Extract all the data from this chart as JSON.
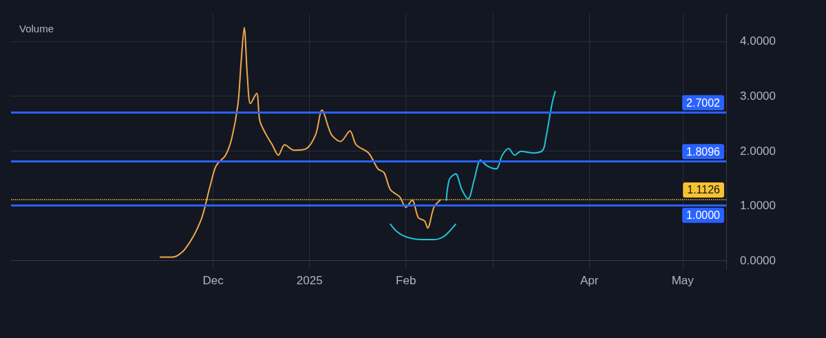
{
  "chart_data": {
    "type": "line",
    "annotations": [
      "Volume"
    ],
    "xlim": [
      "2024-09-27",
      "2025-05-15"
    ],
    "xticks": [
      {
        "value": "2024-12-01",
        "label": "Dec"
      },
      {
        "value": "2025-01-01",
        "label": "2025"
      },
      {
        "value": "2025-02-01",
        "label": "Feb"
      },
      {
        "value": "2025-03-01",
        "label": null
      },
      {
        "value": "2025-04-01",
        "label": "Apr"
      },
      {
        "value": "2025-05-01",
        "label": "May"
      }
    ],
    "ylim": [
      -0.16,
      4.5
    ],
    "yticks": [
      {
        "value": 0,
        "label": "0.0000"
      },
      {
        "value": 1,
        "label": "1.0000"
      },
      {
        "value": 2,
        "label": "2.0000"
      },
      {
        "value": 3,
        "label": "3.0000"
      },
      {
        "value": 4,
        "label": "4.0000"
      }
    ],
    "grid": true,
    "marker": "none",
    "series": [
      {
        "color": "#f0a848",
        "line_style": "solid",
        "x": [
          "2024-11-14",
          "2024-11-18",
          "2024-11-22",
          "2024-11-27",
          "2024-11-30",
          "2024-12-02",
          "2024-12-05",
          "2024-12-07",
          "2024-12-09",
          "2024-12-10",
          "2024-12-11",
          "2024-12-12",
          "2024-12-13",
          "2024-12-15",
          "2024-12-16",
          "2024-12-18",
          "2024-12-20",
          "2024-12-22",
          "2024-12-24",
          "2024-12-27",
          "2024-12-31",
          "2025-01-03",
          "2025-01-05",
          "2025-01-08",
          "2025-01-11",
          "2025-01-14",
          "2025-01-16",
          "2025-01-20",
          "2025-01-23",
          "2025-01-25",
          "2025-01-27",
          "2025-01-30",
          "2025-02-01",
          "2025-02-03",
          "2025-02-05",
          "2025-02-07",
          "2025-02-08",
          "2025-02-10",
          "2025-02-12"
        ],
        "values": [
          0.06,
          0.06,
          0.21,
          0.72,
          1.35,
          1.73,
          1.92,
          2.23,
          2.86,
          3.62,
          4.25,
          3.37,
          2.86,
          3.05,
          2.55,
          2.3,
          2.11,
          1.92,
          2.11,
          2.01,
          2.04,
          2.3,
          2.74,
          2.3,
          2.17,
          2.36,
          2.11,
          1.96,
          1.67,
          1.6,
          1.29,
          1.16,
          0.97,
          1.1,
          0.78,
          0.72,
          0.59,
          0.97,
          1.1
        ]
      },
      {
        "color": "#22c4d6",
        "line_style": "solid",
        "x": [
          "2025-02-14",
          "2025-02-15",
          "2025-02-17",
          "2025-02-19",
          "2025-02-21",
          "2025-02-23",
          "2025-02-25",
          "2025-02-27",
          "2025-03-02",
          "2025-03-04",
          "2025-03-06",
          "2025-03-08",
          "2025-03-10",
          "2025-03-14",
          "2025-03-17",
          "2025-03-18",
          "2025-03-20",
          "2025-03-21"
        ],
        "values": [
          1.1,
          1.48,
          1.58,
          1.29,
          1.12,
          1.48,
          1.83,
          1.73,
          1.67,
          1.92,
          2.04,
          1.92,
          1.99,
          1.96,
          2.01,
          2.23,
          2.86,
          3.08
        ]
      },
      {
        "color": "#22c4d6",
        "line_style": "solid",
        "x": [
          "2025-01-27",
          "2025-01-29",
          "2025-02-01",
          "2025-02-06",
          "2025-02-10",
          "2025-02-13",
          "2025-02-15",
          "2025-02-17"
        ],
        "values": [
          0.66,
          0.53,
          0.43,
          0.38,
          0.38,
          0.43,
          0.53,
          0.66
        ]
      }
    ],
    "ref_lines": [
      {
        "axis": "y",
        "value": 2.7002,
        "label": "2.7002",
        "color": "#2962ff",
        "line_style": "solid"
      },
      {
        "axis": "y",
        "value": 1.8096,
        "label": "1.8096",
        "color": "#2962ff",
        "line_style": "solid"
      },
      {
        "axis": "y",
        "value": 1.1126,
        "label": "1.1126",
        "color": "#f7c231",
        "line_style": "dotted"
      },
      {
        "axis": "y",
        "value": 1.0,
        "label": "1.0000",
        "color": "#2962ff",
        "line_style": "solid"
      }
    ]
  }
}
